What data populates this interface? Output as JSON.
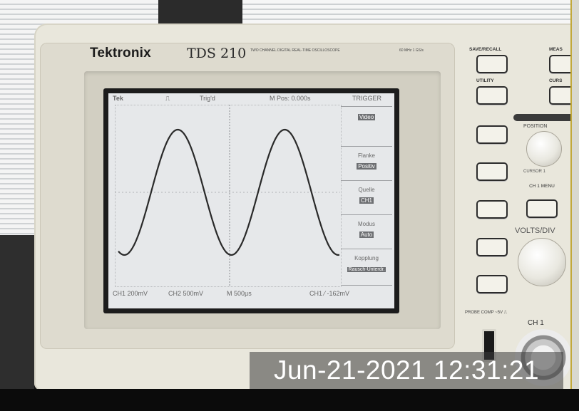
{
  "device": {
    "brand": "Tektronix",
    "model": "TDS 210",
    "model_subtitle": "TWO CHANNEL DIGITAL REAL-TIME OSCILLOSCOPE",
    "bandwidth": "60 MHz 1 GS/s"
  },
  "screen": {
    "top_status": {
      "brand": "Tek",
      "acq": "Trig'd",
      "position": "M Pos: 0.000s",
      "menu_title": "TRIGGER"
    },
    "menu": [
      {
        "label": "Flanke",
        "value": "Video"
      },
      {
        "label": "Flanke",
        "value": "Positiv"
      },
      {
        "label": "Quelle",
        "value": "CH1"
      },
      {
        "label": "Modus",
        "value": "Auto"
      },
      {
        "label": "Kopplung",
        "value": "Rausch-Unterdr."
      }
    ],
    "bottom_status": {
      "ch1": "CH1  200mV",
      "ch2": "CH2  500mV",
      "timebase": "M 500µs",
      "trigger": "CH1 ⁄ -162mV"
    }
  },
  "panel": {
    "save_recall": "SAVE/RECALL",
    "measure": "MEAS",
    "utility": "UTILITY",
    "cursor": "CURS",
    "position": "POSITION",
    "cursor1": "CURSOR 1",
    "ch1_menu": "CH 1 MENU",
    "volts_div": "VOLTS/DIV",
    "probe_comp": "PROBE COMP ~5V ⎍",
    "ch1_input": "CH 1"
  },
  "overlay": {
    "timestamp": "Jun-21-2021 12:31:21"
  },
  "colors": {
    "case": "#e9e7dc",
    "lcd": "#e6e8ea",
    "trace": "#2a2a2a"
  }
}
